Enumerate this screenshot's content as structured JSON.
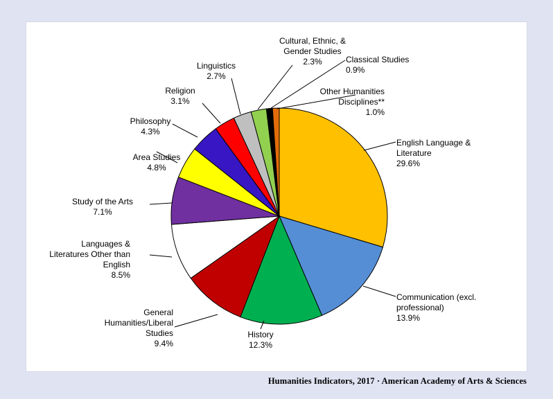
{
  "footer": "Humanities Indicators, 2017 · American Academy of Arts & Sciences",
  "chart_data": {
    "type": "pie",
    "start_angle_deg": 0,
    "direction": "clockwise",
    "slices": [
      {
        "label_lines": [
          "English Language  &",
          "Literature"
        ],
        "value_text": "29.6%",
        "value": 29.6,
        "color": "#ffc000"
      },
      {
        "label_lines": [
          "Communication (excl.",
          "professional)"
        ],
        "value_text": "13.9%",
        "value": 13.9,
        "color": "#558ed5"
      },
      {
        "label_lines": [
          "History"
        ],
        "value_text": "12.3%",
        "value": 12.3,
        "color": "#00b050"
      },
      {
        "label_lines": [
          "General",
          "Humanities/Liberal",
          "Studies"
        ],
        "value_text": "9.4%",
        "value": 9.4,
        "color": "#c00000"
      },
      {
        "label_lines": [
          "Languages  &",
          "Literatures Other than",
          "English"
        ],
        "value_text": "8.5%",
        "value": 8.5,
        "color": "#ffffff"
      },
      {
        "label_lines": [
          "Study of the Arts"
        ],
        "value_text": "7.1%",
        "value": 7.1,
        "color": "#7030a0"
      },
      {
        "label_lines": [
          "Area Studies"
        ],
        "value_text": "4.8%",
        "value": 4.8,
        "color": "#ffff00"
      },
      {
        "label_lines": [
          "Philosophy"
        ],
        "value_text": "4.3%",
        "value": 4.3,
        "color": "#3816c4"
      },
      {
        "label_lines": [
          "Religion"
        ],
        "value_text": "3.1%",
        "value": 3.1,
        "color": "#ff0000"
      },
      {
        "label_lines": [
          "Linguistics"
        ],
        "value_text": "2.7%",
        "value": 2.7,
        "color": "#bfbfbf"
      },
      {
        "label_lines": [
          "Cultural, Ethnic, &",
          "Gender Studies"
        ],
        "value_text": "2.3%",
        "value": 2.3,
        "color": "#92d050"
      },
      {
        "label_lines": [
          "Classical Studies"
        ],
        "value_text": "0.9%",
        "value": 0.9,
        "color": "#000000"
      },
      {
        "label_lines": [
          "Other Humanities",
          "Disciplines**"
        ],
        "value_text": "1.0%",
        "value": 1.0,
        "color": "#e36c09"
      }
    ]
  }
}
